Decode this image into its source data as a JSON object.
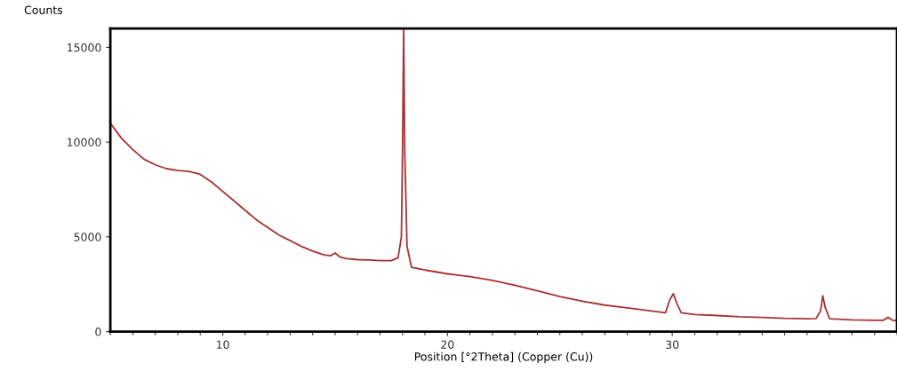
{
  "chart_data": {
    "type": "line",
    "xlabel": "Position [°2Theta] (Copper (Cu))",
    "ylabel": "Counts",
    "xlim": [
      5,
      40
    ],
    "ylim": [
      0,
      16000
    ],
    "xticks": [
      10,
      20,
      30
    ],
    "yticks": [
      0,
      5000,
      10000,
      15000
    ],
    "grid": false,
    "marker": "none",
    "line_style": "solid",
    "series": [
      {
        "color": "#a83232",
        "x": [
          5,
          5.5,
          6,
          6.5,
          7,
          7.5,
          8,
          8.5,
          9,
          9.5,
          10,
          10.5,
          11,
          11.5,
          12,
          12.5,
          13,
          13.5,
          14,
          14.5,
          14.8,
          15,
          15.2,
          15.5,
          16,
          16.5,
          17,
          17.5,
          17.8,
          17.95,
          18.0,
          18.05,
          18.1,
          18.2,
          18.4,
          19,
          20,
          21,
          22,
          23,
          24,
          25,
          26,
          27,
          28,
          29,
          29.7,
          29.9,
          30.05,
          30.2,
          30.4,
          31,
          32,
          33,
          34,
          35,
          36,
          36.4,
          36.6,
          36.7,
          36.8,
          37,
          38,
          39,
          39.4,
          39.6,
          39.8,
          40
        ],
        "values": [
          11000,
          10200,
          9600,
          9100,
          8800,
          8600,
          8500,
          8450,
          8300,
          7900,
          7400,
          6900,
          6400,
          5900,
          5500,
          5100,
          4800,
          4500,
          4250,
          4050,
          4000,
          4150,
          3950,
          3850,
          3800,
          3780,
          3750,
          3750,
          3900,
          5000,
          9500,
          16000,
          9500,
          4500,
          3400,
          3250,
          3050,
          2900,
          2700,
          2450,
          2150,
          1850,
          1600,
          1400,
          1250,
          1100,
          1000,
          1700,
          2000,
          1500,
          1000,
          900,
          850,
          780,
          750,
          700,
          680,
          690,
          1100,
          1900,
          1300,
          680,
          620,
          600,
          600,
          750,
          600,
          580
        ]
      }
    ]
  }
}
